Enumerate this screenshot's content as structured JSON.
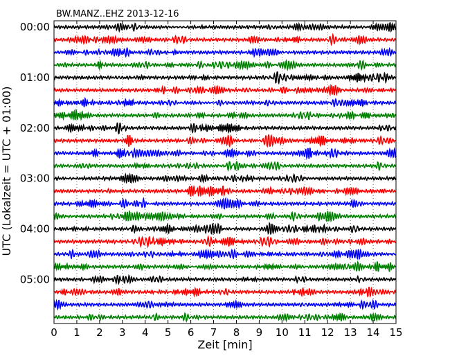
{
  "chart_data": {
    "type": "line",
    "title": "BW.MANZ..EHZ 2013-12-16",
    "xlabel": "Zeit  [min]",
    "ylabel": "UTC (Lokalzeit = UTC + 01:00)",
    "xlim": [
      0,
      15
    ],
    "x_ticks": [
      "0",
      "1",
      "2",
      "3",
      "4",
      "5",
      "6",
      "7",
      "8",
      "9",
      "10",
      "11",
      "12",
      "13",
      "14",
      "15"
    ],
    "y_tick_labels": [
      "00:00",
      "01:00",
      "02:00",
      "03:00",
      "04:00",
      "05:00"
    ],
    "grid": "vertical dotted lines at each minute",
    "traces_per_hour": 4,
    "trace_minutes": 15,
    "trace_count": 24,
    "trace_colors": [
      "#000000",
      "#ff0000",
      "#0000ff",
      "#008000"
    ]
  }
}
